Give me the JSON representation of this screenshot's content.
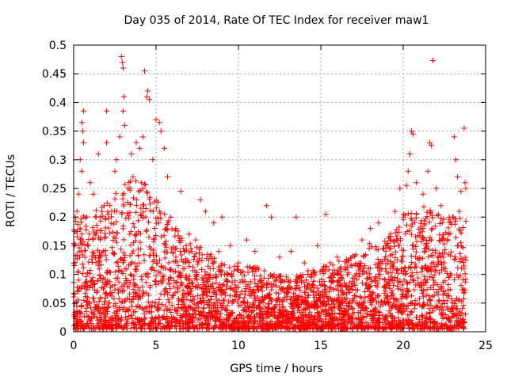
{
  "chart_data": {
    "type": "scatter",
    "title": "Day 035 of 2014, Rate Of TEC Index for receiver maw1",
    "xlabel": "GPS time / hours",
    "ylabel": "ROTI / TECUs",
    "xlim": [
      0,
      25
    ],
    "ylim": [
      0,
      0.5
    ],
    "x_ticks": [
      0,
      5,
      10,
      15,
      20,
      25
    ],
    "y_ticks": [
      0,
      0.05,
      0.1,
      0.15,
      0.2,
      0.25,
      0.3,
      0.35,
      0.4,
      0.45,
      0.5
    ],
    "x_tick_labels": [
      "0",
      "5",
      "10",
      "15",
      "20",
      "25"
    ],
    "y_tick_labels": [
      "0",
      "0.05",
      "0.1",
      "0.15",
      "0.2",
      "0.25",
      "0.3",
      "0.35",
      "0.4",
      "0.45",
      "0.5"
    ],
    "grid": true,
    "marker": "+",
    "marker_color": "#ff0000",
    "series": [
      {
        "name": "ROTI",
        "points": [
          [
            2.9,
            0.48
          ],
          [
            2.95,
            0.47
          ],
          [
            3.0,
            0.46
          ],
          [
            3.05,
            0.41
          ],
          [
            4.3,
            0.455
          ],
          [
            4.5,
            0.42
          ],
          [
            4.6,
            0.405
          ],
          [
            4.45,
            0.41
          ],
          [
            21.8,
            0.473
          ],
          [
            0.6,
            0.385
          ],
          [
            2.0,
            0.385
          ],
          [
            3.0,
            0.385
          ],
          [
            3.1,
            0.36
          ],
          [
            5.0,
            0.37
          ],
          [
            5.2,
            0.365
          ],
          [
            5.3,
            0.35
          ],
          [
            5.5,
            0.32
          ],
          [
            0.5,
            0.365
          ],
          [
            0.55,
            0.35
          ],
          [
            0.6,
            0.33
          ],
          [
            0.4,
            0.3
          ],
          [
            0.5,
            0.28
          ],
          [
            1.0,
            0.26
          ],
          [
            1.5,
            0.31
          ],
          [
            2.0,
            0.33
          ],
          [
            2.5,
            0.28
          ],
          [
            2.6,
            0.3
          ],
          [
            2.8,
            0.34
          ],
          [
            3.5,
            0.31
          ],
          [
            3.8,
            0.33
          ],
          [
            4.0,
            0.32
          ],
          [
            4.2,
            0.34
          ],
          [
            4.8,
            0.3
          ],
          [
            5.7,
            0.27
          ],
          [
            6.5,
            0.245
          ],
          [
            7.7,
            0.23
          ],
          [
            8.0,
            0.21
          ],
          [
            8.5,
            0.19
          ],
          [
            9.0,
            0.2
          ],
          [
            11.7,
            0.22
          ],
          [
            12.0,
            0.2
          ],
          [
            13.5,
            0.2
          ],
          [
            15.3,
            0.205
          ],
          [
            20.5,
            0.35
          ],
          [
            20.6,
            0.345
          ],
          [
            20.4,
            0.31
          ],
          [
            20.3,
            0.28
          ],
          [
            20.2,
            0.255
          ],
          [
            20.8,
            0.26
          ],
          [
            21.6,
            0.33
          ],
          [
            21.7,
            0.325
          ],
          [
            21.5,
            0.28
          ],
          [
            22.0,
            0.25
          ],
          [
            22.3,
            0.22
          ],
          [
            23.1,
            0.34
          ],
          [
            23.2,
            0.3
          ],
          [
            23.3,
            0.27
          ],
          [
            23.5,
            0.245
          ],
          [
            23.7,
            0.355
          ],
          [
            23.75,
            0.26
          ],
          [
            23.8,
            0.25
          ],
          [
            19.8,
            0.25
          ],
          [
            19.5,
            0.21
          ],
          [
            18.5,
            0.19
          ],
          [
            18.0,
            0.18
          ],
          [
            17.5,
            0.16
          ],
          [
            16.0,
            0.13
          ],
          [
            14.8,
            0.15
          ],
          [
            14.0,
            0.12
          ],
          [
            13.2,
            0.14
          ],
          [
            12.5,
            0.13
          ],
          [
            11.0,
            0.14
          ],
          [
            10.5,
            0.16
          ],
          [
            10.0,
            0.12
          ],
          [
            9.5,
            0.15
          ],
          [
            0.1,
            0.2
          ],
          [
            0.2,
            0.21
          ],
          [
            0.3,
            0.24
          ],
          [
            0.8,
            0.2
          ],
          [
            1.2,
            0.24
          ],
          [
            1.6,
            0.2
          ],
          [
            2.2,
            0.22
          ],
          [
            3.3,
            0.25
          ],
          [
            3.6,
            0.27
          ],
          [
            4.1,
            0.26
          ],
          [
            5.9,
            0.2
          ],
          [
            6.2,
            0.18
          ],
          [
            7.0,
            0.17
          ],
          [
            7.4,
            0.16
          ],
          [
            8.8,
            0.14
          ],
          [
            22.8,
            0.2
          ],
          [
            23.0,
            0.2
          ],
          [
            23.4,
            0.21
          ],
          [
            21.2,
            0.24
          ],
          [
            20.0,
            0.2
          ]
        ]
      }
    ],
    "bulk_distribution": {
      "description": "dense band of points between 0 and about 0.1 across the whole day, rising toward 0.15-0.25 near 0-6 h and 19-24 h",
      "x_range": [
        0,
        23.8
      ],
      "typical_envelope": [
        [
          0,
          0.2
        ],
        [
          1,
          0.2
        ],
        [
          2,
          0.22
        ],
        [
          3,
          0.25
        ],
        [
          4,
          0.27
        ],
        [
          5,
          0.23
        ],
        [
          6,
          0.18
        ],
        [
          7,
          0.15
        ],
        [
          8,
          0.14
        ],
        [
          9,
          0.12
        ],
        [
          10,
          0.11
        ],
        [
          11,
          0.11
        ],
        [
          12,
          0.1
        ],
        [
          13,
          0.09
        ],
        [
          14,
          0.1
        ],
        [
          15,
          0.11
        ],
        [
          16,
          0.12
        ],
        [
          17,
          0.13
        ],
        [
          18,
          0.15
        ],
        [
          19,
          0.16
        ],
        [
          20,
          0.2
        ],
        [
          21,
          0.22
        ],
        [
          22,
          0.2
        ],
        [
          23,
          0.2
        ],
        [
          23.8,
          0.19
        ]
      ]
    }
  }
}
